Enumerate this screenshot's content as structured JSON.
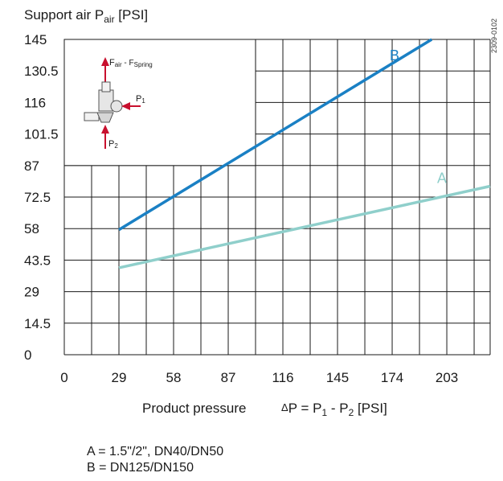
{
  "chart_data": {
    "type": "line",
    "ylabel": {
      "main": "Support air P",
      "sub": "air",
      "unit": " [PSI]"
    },
    "xlabel": {
      "main": "Product pressure",
      "formula": "P = P",
      "s1": "1",
      "mid": " - P",
      "s2": "2",
      "unit": " [PSI]"
    },
    "xticks": [
      0,
      29,
      58,
      87,
      116,
      145,
      174,
      203
    ],
    "xtick_labels": [
      "0",
      "29",
      "58",
      "87",
      "116",
      "145",
      "174",
      "203"
    ],
    "yticks": [
      0,
      14.5,
      29,
      43.5,
      58,
      72.5,
      87,
      101.5,
      116,
      130.5,
      145
    ],
    "ytick_labels": [
      "0",
      "14.5",
      "29",
      "43.5",
      "58",
      "72.5",
      "87",
      "101.5",
      "116",
      "130.5",
      "145"
    ],
    "xlim": [
      0,
      226
    ],
    "ylim": [
      0,
      145
    ],
    "grid": true,
    "series": [
      {
        "name": "A",
        "color": "#8fcfcb",
        "x": [
          29,
          226
        ],
        "y": [
          40,
          77.5
        ]
      },
      {
        "name": "B",
        "color": "#1a80c4",
        "x": [
          29,
          195
        ],
        "y": [
          57.5,
          145
        ]
      }
    ],
    "inset": {
      "f_label": "F",
      "f_air_sub": "air",
      "f_sep": " - F",
      "f_spring_sub": "Spring",
      "p1_label": "P",
      "p1_sub": "1",
      "p2_label": "P",
      "p2_sub": "2"
    },
    "doc_id": "2309-0102"
  },
  "legend": [
    "A = 1.5\"/2\", DN40/DN50",
    "B = DN125/DN150"
  ]
}
